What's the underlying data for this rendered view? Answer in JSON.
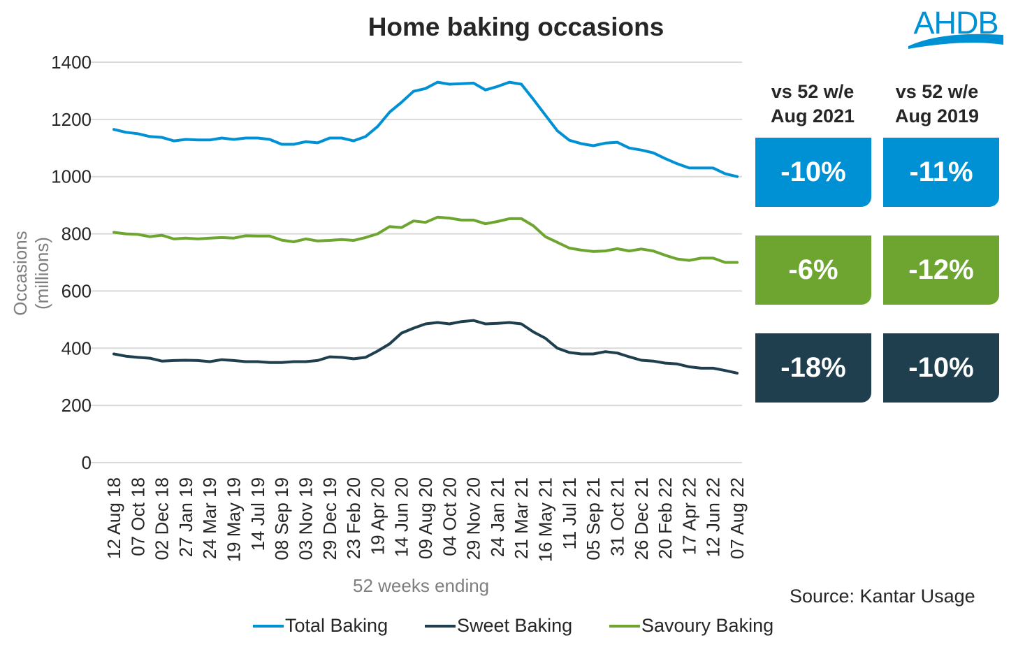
{
  "chart_data": {
    "type": "line",
    "title": "Home baking occasions",
    "xlabel": "52 weeks ending",
    "ylabel": "Occasions (millions)",
    "ylim": [
      0,
      1400
    ],
    "yticks": [
      0,
      200,
      400,
      600,
      800,
      1000,
      1200,
      1400
    ],
    "grid": true,
    "legend_placement": "bottom",
    "x_tick_labels": [
      "12 Aug 18",
      "07 Oct 18",
      "02 Dec 18",
      "27 Jan 19",
      "24 Mar 19",
      "19 May 19",
      "14 Jul 19",
      "08 Sep 19",
      "03 Nov 19",
      "29 Dec 19",
      "23 Feb 20",
      "19 Apr 20",
      "14 Jun 20",
      "09 Aug 20",
      "04 Oct 20",
      "29 Nov 20",
      "24 Jan 21",
      "21 Mar 21",
      "16 May 21",
      "11 Jul 21",
      "05 Sep 21",
      "31 Oct 21",
      "26 Dec 21",
      "20 Feb 22",
      "17 Apr 22",
      "12 Jun 22",
      "07 Aug 22"
    ],
    "x_interval": "4-weekly points from 12 Aug 18 to 07 Aug 22",
    "series": [
      {
        "name": "Total Baking",
        "color": "#0090D4",
        "values": [
          1165,
          1155,
          1150,
          1140,
          1137,
          1125,
          1130,
          1128,
          1128,
          1135,
          1130,
          1135,
          1135,
          1130,
          1113,
          1113,
          1122,
          1118,
          1135,
          1135,
          1125,
          1140,
          1175,
          1225,
          1260,
          1298,
          1308,
          1330,
          1323,
          1325,
          1327,
          1303,
          1315,
          1330,
          1323,
          1270,
          1215,
          1160,
          1127,
          1115,
          1108,
          1117,
          1120,
          1100,
          1093,
          1083,
          1063,
          1045,
          1030,
          1030,
          1030,
          1010,
          1000
        ]
      },
      {
        "name": "Sweet Baking",
        "color": "#1F3F4F",
        "values": [
          380,
          372,
          368,
          365,
          355,
          357,
          358,
          357,
          353,
          360,
          357,
          353,
          353,
          350,
          350,
          353,
          353,
          357,
          370,
          368,
          363,
          368,
          390,
          415,
          453,
          470,
          485,
          490,
          485,
          493,
          497,
          485,
          487,
          490,
          485,
          457,
          435,
          400,
          385,
          380,
          380,
          388,
          383,
          370,
          358,
          355,
          348,
          345,
          335,
          330,
          330,
          322,
          313
        ]
      },
      {
        "name": "Savoury Baking",
        "color": "#6EA530",
        "values": [
          805,
          800,
          798,
          790,
          795,
          782,
          785,
          782,
          785,
          787,
          785,
          793,
          792,
          792,
          778,
          772,
          782,
          775,
          777,
          780,
          777,
          787,
          800,
          825,
          822,
          845,
          840,
          858,
          855,
          848,
          848,
          835,
          843,
          853,
          853,
          828,
          790,
          770,
          750,
          743,
          738,
          740,
          748,
          740,
          747,
          740,
          725,
          712,
          707,
          715,
          715,
          700,
          700
        ]
      }
    ]
  },
  "logo": "AHDB",
  "comparison": {
    "headers": [
      [
        "vs 52 w/e",
        "Aug 2021"
      ],
      [
        "vs 52 w/e",
        "Aug 2019"
      ]
    ],
    "rows": [
      {
        "series": "Total Baking",
        "color": "#0090D4",
        "values": [
          "-10%",
          "-11%"
        ]
      },
      {
        "series": "Savoury Baking",
        "color": "#6EA530",
        "values": [
          "-6%",
          "-12%"
        ]
      },
      {
        "series": "Sweet Baking",
        "color": "#1F3F4F",
        "values": [
          "-18%",
          "-10%"
        ]
      }
    ]
  },
  "source": "Source: Kantar Usage"
}
